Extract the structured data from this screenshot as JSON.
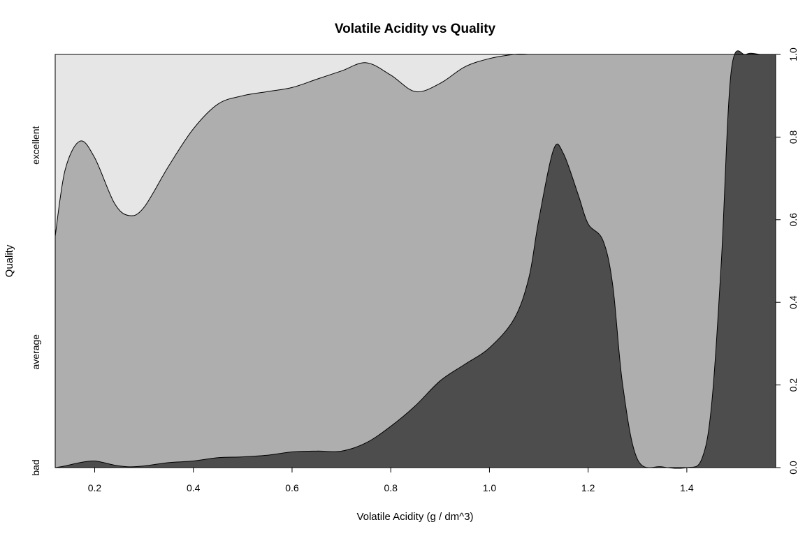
{
  "chart_data": {
    "type": "area",
    "subtype": "conditional-density-stacked",
    "title": "Volatile Acidity vs Quality",
    "xlabel": "Volatile Acidity (g / dm^3)",
    "ylabel": "Quality",
    "xlim": [
      0.12,
      1.58
    ],
    "ylim": [
      0,
      1
    ],
    "x_ticks": [
      0.2,
      0.4,
      0.6,
      0.8,
      1.0,
      1.2,
      1.4
    ],
    "x_tick_labels": [
      "0.2",
      "0.4",
      "0.6",
      "0.8",
      "1.0",
      "1.2",
      "1.4"
    ],
    "y_ticks": [
      0,
      0.2,
      0.4,
      0.6,
      0.8,
      1.0
    ],
    "y_tick_labels": [
      "0.0",
      "0.2",
      "0.4",
      "0.6",
      "0.8",
      "1.0"
    ],
    "categories": [
      "bad",
      "average",
      "excellent"
    ],
    "colors": {
      "bad": "#4d4d4d",
      "average": "#aeaeae",
      "excellent": "#e6e6e6"
    },
    "grid": false,
    "x": [
      0.12,
      0.14,
      0.17,
      0.2,
      0.24,
      0.27,
      0.3,
      0.35,
      0.4,
      0.45,
      0.5,
      0.55,
      0.6,
      0.65,
      0.7,
      0.75,
      0.8,
      0.85,
      0.9,
      0.95,
      1.0,
      1.05,
      1.08,
      1.1,
      1.13,
      1.15,
      1.18,
      1.2,
      1.23,
      1.25,
      1.27,
      1.3,
      1.35,
      1.4,
      1.43,
      1.45,
      1.47,
      1.49,
      1.52,
      1.55,
      1.58
    ],
    "series": [
      {
        "name": "bad",
        "cumulative": [
          0.0,
          0.004,
          0.012,
          0.016,
          0.006,
          0.002,
          0.004,
          0.012,
          0.016,
          0.024,
          0.026,
          0.03,
          0.038,
          0.04,
          0.04,
          0.06,
          0.1,
          0.15,
          0.21,
          0.25,
          0.29,
          0.36,
          0.46,
          0.6,
          0.77,
          0.76,
          0.66,
          0.59,
          0.55,
          0.44,
          0.2,
          0.02,
          0.002,
          0.0,
          0.02,
          0.15,
          0.5,
          0.96,
          1.0,
          1.0,
          1.0
        ]
      },
      {
        "name": "average",
        "cumulative": [
          0.56,
          0.72,
          0.79,
          0.75,
          0.64,
          0.61,
          0.63,
          0.73,
          0.82,
          0.88,
          0.9,
          0.91,
          0.92,
          0.94,
          0.96,
          0.98,
          0.95,
          0.91,
          0.93,
          0.97,
          0.99,
          1.0,
          1.0,
          1.0,
          1.0,
          1.0,
          1.0,
          1.0,
          1.0,
          1.0,
          1.0,
          1.0,
          1.0,
          1.0,
          1.0,
          1.0,
          1.0,
          1.0,
          1.0,
          1.0,
          1.0
        ]
      },
      {
        "name": "excellent",
        "cumulative": [
          1.0,
          1.0,
          1.0,
          1.0,
          1.0,
          1.0,
          1.0,
          1.0,
          1.0,
          1.0,
          1.0,
          1.0,
          1.0,
          1.0,
          1.0,
          1.0,
          1.0,
          1.0,
          1.0,
          1.0,
          1.0,
          1.0,
          1.0,
          1.0,
          1.0,
          1.0,
          1.0,
          1.0,
          1.0,
          1.0,
          1.0,
          1.0,
          1.0,
          1.0,
          1.0,
          1.0,
          1.0,
          1.0,
          1.0,
          1.0,
          1.0
        ]
      }
    ]
  }
}
